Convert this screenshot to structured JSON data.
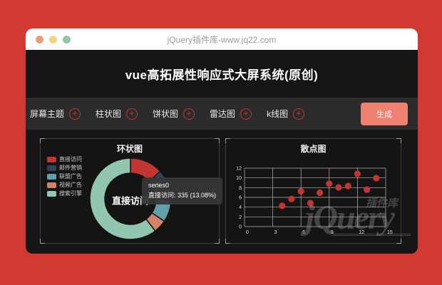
{
  "browser": {
    "title": "jQuery插件库-www.jq22.com"
  },
  "header": {
    "title": "vue高拓展性响应式大屏系统(原创)"
  },
  "toolbar": {
    "plus_glyph": "+",
    "accent_color": "#c8372c",
    "button_color": "#ee8170",
    "items": [
      {
        "label": "屏幕主题"
      },
      {
        "label": "柱状图"
      },
      {
        "label": "饼状图"
      },
      {
        "label": "雷达图"
      },
      {
        "label": "k线图"
      }
    ],
    "generate_label": "生成"
  },
  "watermark": {
    "main": "jQuery",
    "badge": "插件库"
  },
  "chart_data": [
    {
      "type": "pie",
      "title": "环状图",
      "series_name": "series0",
      "legend_position": "left",
      "center_label": "直接访问",
      "items": [
        {
          "name": "直接访问",
          "value": 335,
          "color": "#c23531"
        },
        {
          "name": "邮件营销",
          "value": 310,
          "color": "#2f4554"
        },
        {
          "name": "联盟广告",
          "value": 234,
          "color": "#61a0a8"
        },
        {
          "name": "视频广告",
          "value": 135,
          "color": "#d48265"
        },
        {
          "name": "搜索引擎",
          "value": 1548,
          "color": "#91c7ae"
        }
      ],
      "tooltip": {
        "line1": "series0",
        "line2": "直接访问: 335 (13.08%)"
      }
    },
    {
      "type": "scatter",
      "title": "散点图",
      "point_color": "#c23531",
      "points": [
        [
          10,
          8.04
        ],
        [
          8,
          6.95
        ],
        [
          13,
          7.58
        ],
        [
          9,
          8.81
        ],
        [
          11,
          8.33
        ],
        [
          14,
          9.96
        ],
        [
          6,
          7.24
        ],
        [
          4,
          4.26
        ],
        [
          12,
          10.84
        ],
        [
          7,
          4.82
        ],
        [
          5,
          5.68
        ]
      ],
      "xlim": [
        0,
        15
      ],
      "ylim": [
        0,
        12
      ],
      "x_ticks": [
        0,
        3,
        6,
        9,
        12,
        15
      ],
      "y_ticks": [
        0,
        2,
        4,
        6,
        8,
        10,
        12
      ],
      "grid": true,
      "legend_position": "none"
    }
  ]
}
